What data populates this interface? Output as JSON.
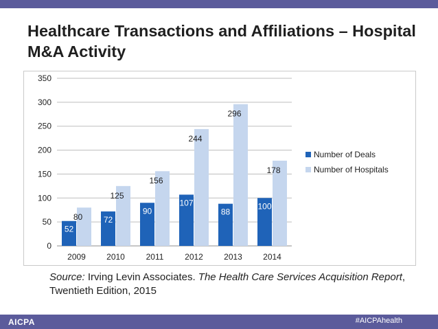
{
  "title": "Healthcare Transactions and Affiliations – Hospital M&A Activity",
  "source": {
    "label": "Source:",
    "publisher": " Irving Levin Associates. ",
    "report": "The Health Care Services Acquisition Report",
    "edition": ", Twentieth Edition, 2015"
  },
  "footer": {
    "logo": "AICPA",
    "hashtag": "#AICPAhealth"
  },
  "colors": {
    "deals": "#1f63b8",
    "hospitals": "#c5d6ee",
    "bars_band": "#5b5b9b"
  },
  "chart_data": {
    "type": "bar",
    "categories": [
      "2009",
      "2010",
      "2011",
      "2012",
      "2013",
      "2014"
    ],
    "series": [
      {
        "name": "Number of Deals",
        "values": [
          52,
          72,
          90,
          107,
          88,
          100
        ]
      },
      {
        "name": "Number of Hospitals",
        "values": [
          80,
          125,
          156,
          244,
          296,
          178
        ]
      }
    ],
    "ylim": [
      0,
      350
    ],
    "yticks": [
      0,
      50,
      100,
      150,
      200,
      250,
      300,
      350
    ],
    "grid": true,
    "legend": "right"
  }
}
